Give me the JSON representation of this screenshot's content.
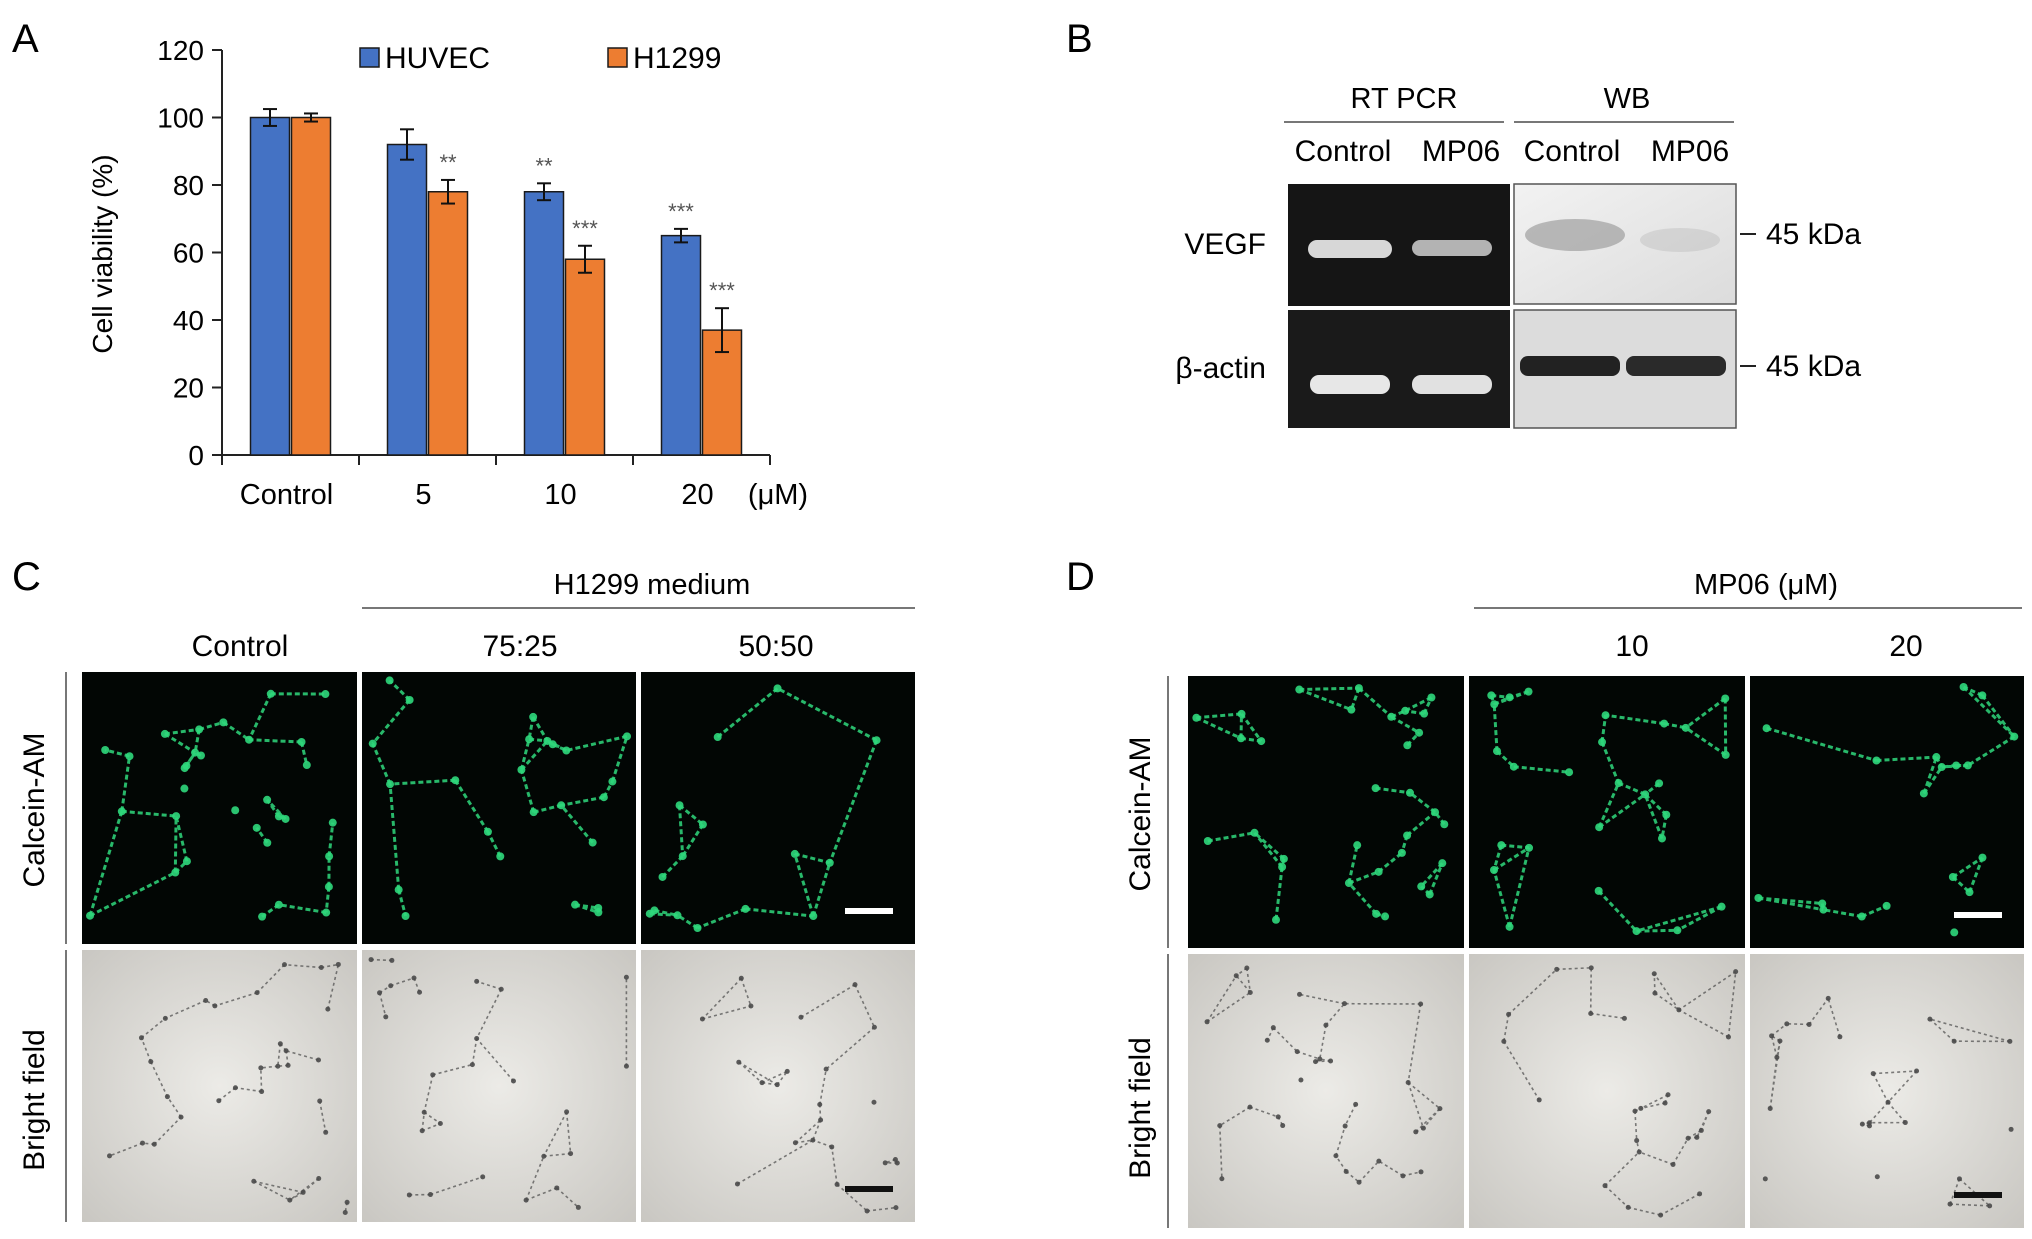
{
  "panels": {
    "a": {
      "letter": "A"
    },
    "b": {
      "letter": "B",
      "method_headers": [
        "RT PCR",
        "WB"
      ],
      "lane_labels": [
        "Control",
        "MP06",
        "Control",
        "MP06"
      ],
      "row_labels": [
        "VEGF",
        "β-actin"
      ],
      "size_labels": [
        "45 kDa",
        "45 kDa"
      ]
    },
    "c": {
      "letter": "C",
      "group_header": "H1299 medium",
      "column_labels": [
        "Control",
        "75:25",
        "50:50"
      ],
      "row_labels": [
        "Calcein-AM",
        "Bright field"
      ]
    },
    "d": {
      "letter": "D",
      "group_header": "MP06 (μM)",
      "column_labels": [
        "",
        "10",
        "20"
      ],
      "row_labels": [
        "Calcein-AM",
        "Bright field"
      ]
    }
  },
  "colors": {
    "huvec": "#4472C4",
    "h1299": "#ED7D31",
    "fluor_bg": "#020604",
    "fluor_green": "#2fd87c",
    "bright_bg": "#dedcd7",
    "gel_bg": "#141414"
  },
  "chart_data": {
    "type": "bar",
    "categories": [
      "Control",
      "5",
      "10",
      "20"
    ],
    "x_unit": "(μM)",
    "xlabel": "",
    "ylabel": "Cell viability (%)",
    "ylim": [
      0,
      120
    ],
    "yticks": [
      0,
      20,
      40,
      60,
      80,
      100,
      120
    ],
    "legend_position": "top",
    "grid": false,
    "series": [
      {
        "name": "HUVEC",
        "color": "#4472C4",
        "values": [
          100,
          92,
          78,
          65
        ],
        "errors": [
          2.5,
          4.5,
          2.5,
          2
        ],
        "significance": [
          "",
          "",
          "**",
          "***"
        ]
      },
      {
        "name": "H1299",
        "color": "#ED7D31",
        "values": [
          100,
          78,
          58,
          37
        ],
        "errors": [
          1.2,
          3.5,
          4,
          6.5
        ],
        "significance": [
          "",
          "**",
          "***",
          "***"
        ]
      }
    ]
  }
}
